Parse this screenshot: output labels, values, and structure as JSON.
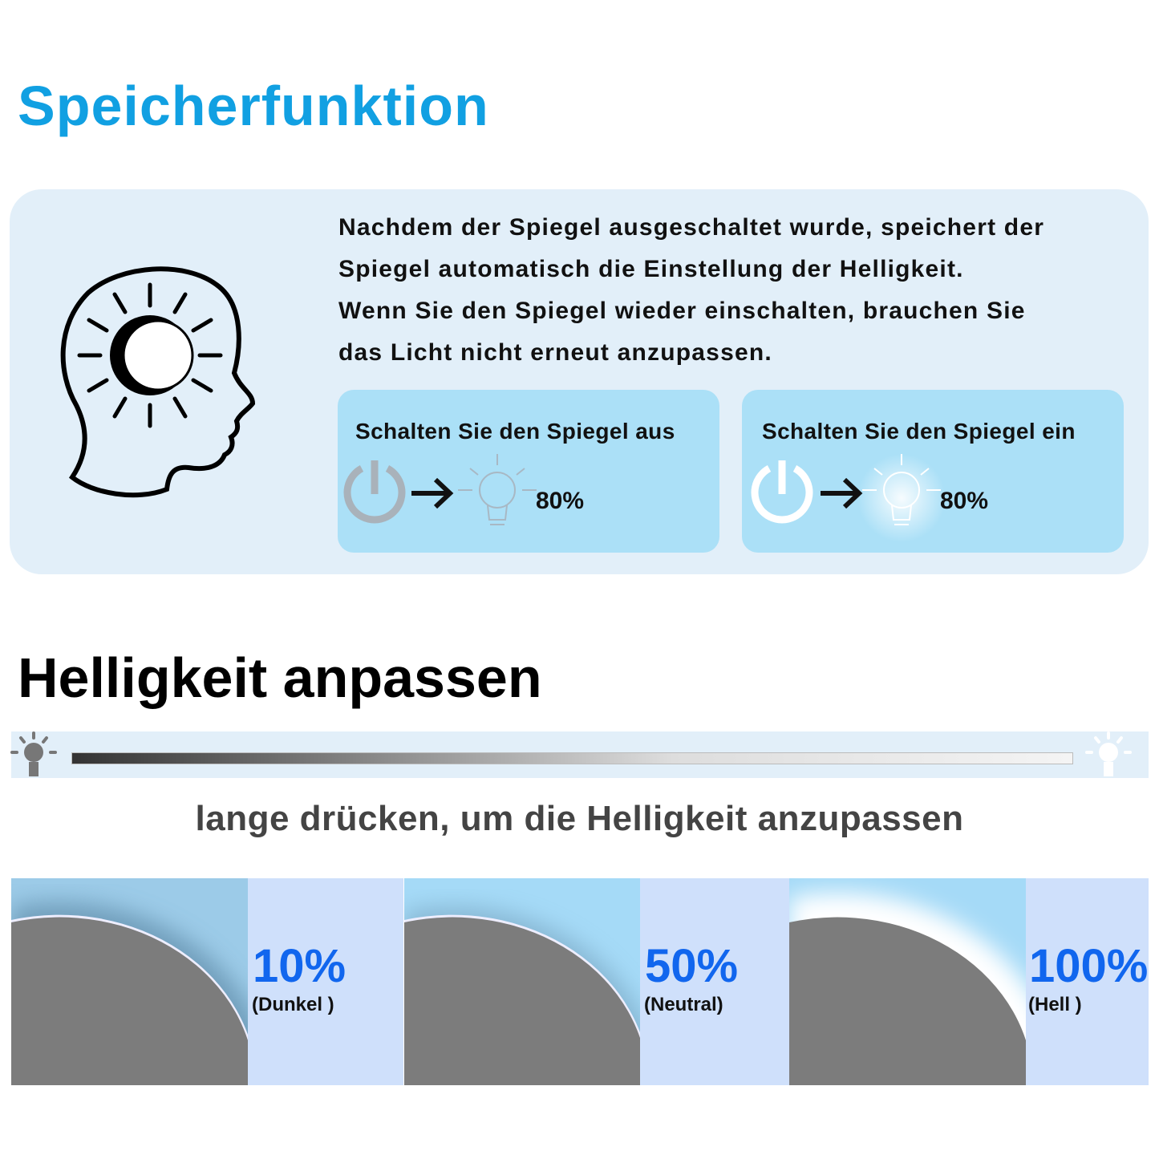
{
  "memory": {
    "title": "Speicherfunktion",
    "paragraph": [
      "Nachdem der Spiegel ausgeschaltet wurde, speichert der",
      "Spiegel automatisch die Einstellung der Helligkeit.",
      "Wenn Sie den Spiegel wieder einschalten, brauchen Sie",
      "das Licht nicht erneut anzupassen."
    ],
    "off_box": {
      "label": "Schalten Sie den Spiegel aus",
      "value": "80%"
    },
    "on_box": {
      "label": "Schalten Sie den Spiegel ein",
      "value": "80%"
    },
    "icons": [
      "head-with-sun-moon-icon",
      "power-icon",
      "arrow-right-icon",
      "light-bulb-icon"
    ]
  },
  "brightness": {
    "title": "Helligkeit anpassen",
    "instruction": "lange drücken, um die Helligkeit anzupassen",
    "levels": [
      {
        "value": "10%",
        "name": "(Dunkel )"
      },
      {
        "value": "50%",
        "name": "(Neutral)"
      },
      {
        "value": "100%",
        "name": "(Hell )"
      }
    ]
  },
  "colors": {
    "accent": "#11a0e2",
    "percent": "#1166ee",
    "panel": "#e2eff9",
    "box": "#abe0f7"
  }
}
